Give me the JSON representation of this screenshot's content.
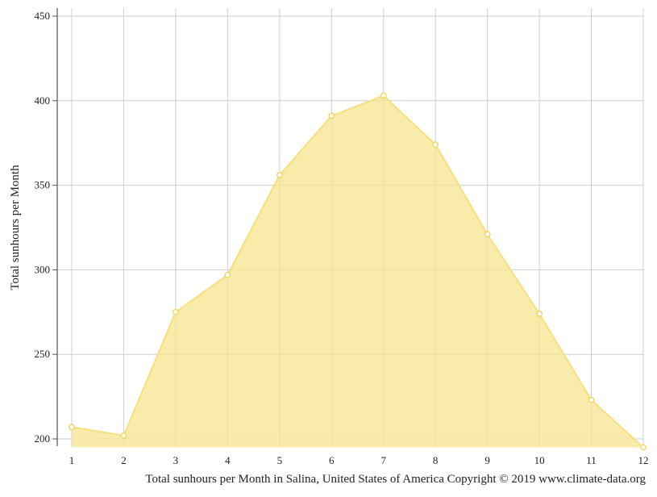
{
  "chart_data": {
    "type": "area",
    "x": [
      1,
      2,
      3,
      4,
      5,
      6,
      7,
      8,
      9,
      10,
      11,
      12
    ],
    "x_tick_labels": [
      "1",
      "2",
      "3",
      "4",
      "5",
      "6",
      "7",
      "8",
      "9",
      "10",
      "11",
      "12"
    ],
    "series": [
      {
        "values": [
          207,
          202,
          275,
          297,
          356,
          391,
          403,
          374,
          321,
          274,
          223,
          195
        ]
      }
    ],
    "ylabel": "Total sunhours per Month",
    "xlabel": "Total sunhours per Month in Salina, United States of America Copyright © 2019 www.climate-data.org",
    "ylim": [
      195,
      450
    ],
    "y_ticks": [
      200,
      250,
      300,
      350,
      400,
      450
    ],
    "grid": true,
    "colors": {
      "fill": "#f7e58e",
      "line": "#f6df7e",
      "marker_fill": "#ffffff",
      "marker_stroke": "#f0d564"
    }
  }
}
